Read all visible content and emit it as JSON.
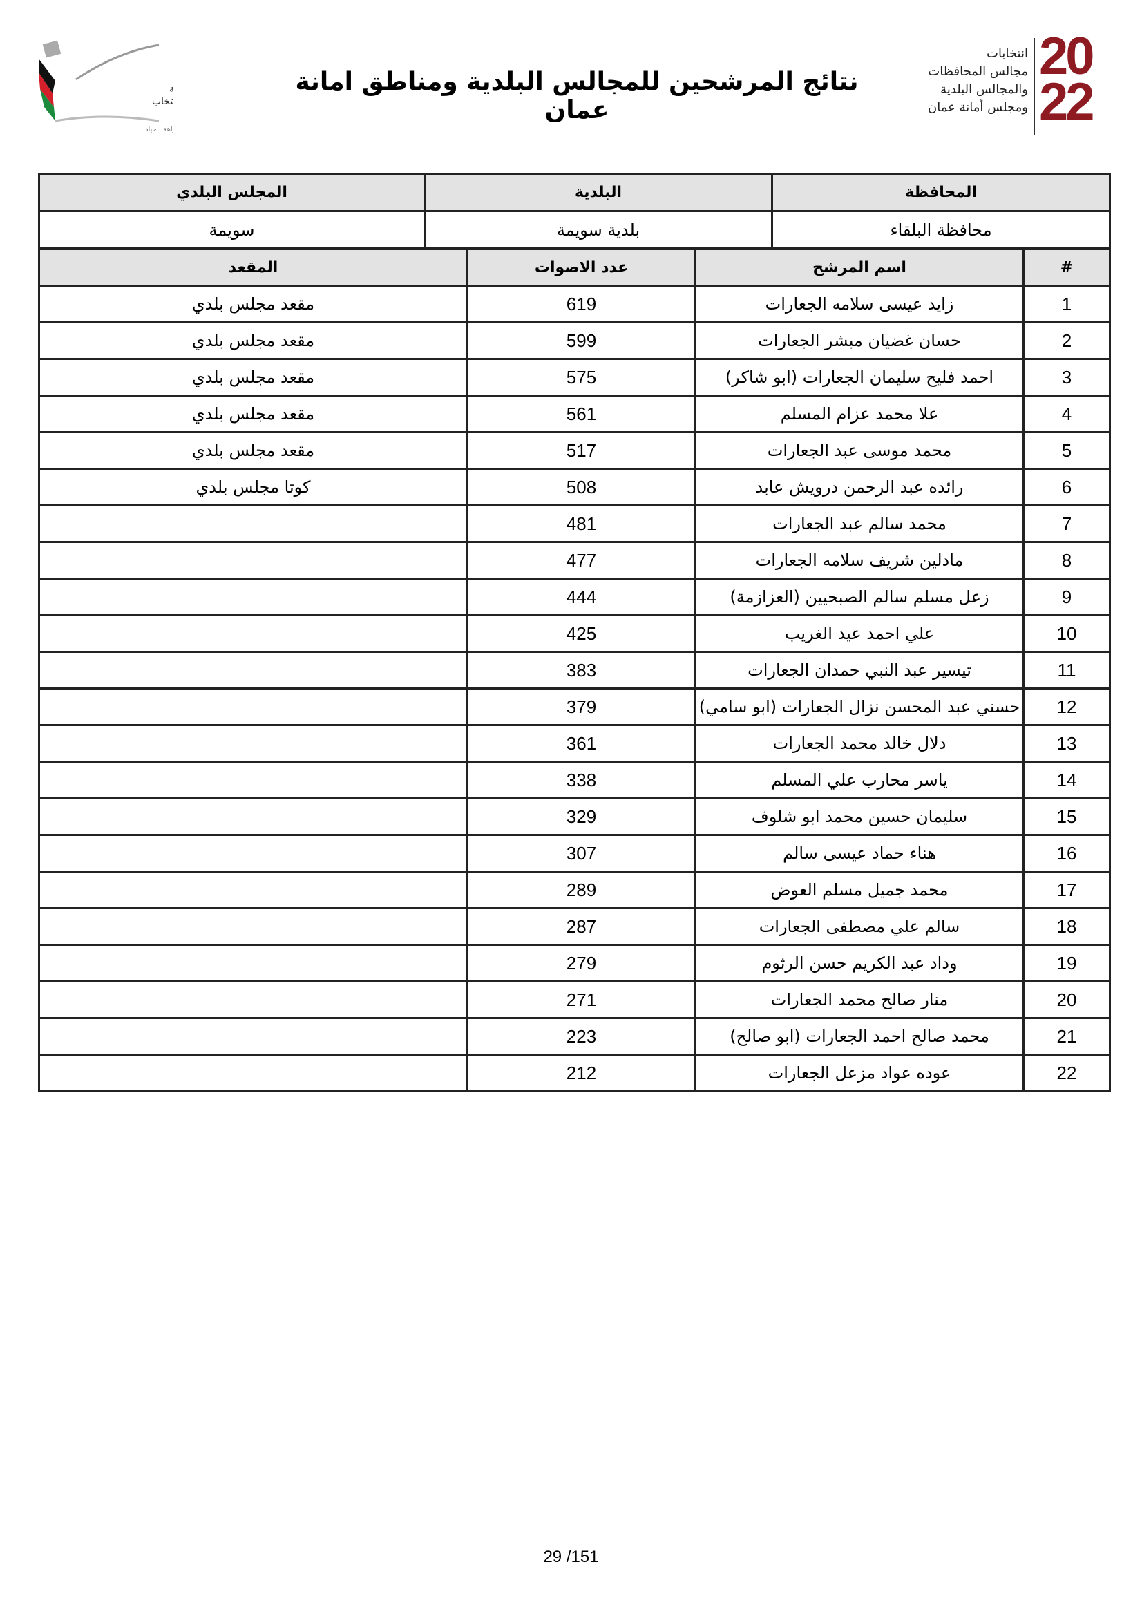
{
  "header": {
    "title": "نتائج المرشحين للمجالس البلدية ومناطق امانة عمان",
    "left_logo": {
      "name": "الهيئة المستقلة للانتخاب",
      "motto": "أمانة . نزاهة . حياد"
    },
    "right_logo": {
      "lines": [
        "انتخابات",
        "مجالس المحافظات",
        "والمجالس البلدية",
        "ومجلس أمانة عمان"
      ],
      "year": "2022",
      "color": "#8e1b22"
    }
  },
  "info": {
    "headers": [
      "المحافظة",
      "البلدية",
      "المجلس البلدي"
    ],
    "values": [
      "محافظة البلقاء",
      "بلدية سويمة",
      "سويمة"
    ]
  },
  "results": {
    "headers": [
      "#",
      "اسم المرشح",
      "عدد الاصوات",
      "المقعد"
    ],
    "rows": [
      [
        "1",
        "زايد عيسى سلامه الجعارات",
        "619",
        "مقعد مجلس بلدي"
      ],
      [
        "2",
        "حسان غضيان مبشر الجعارات",
        "599",
        "مقعد مجلس بلدي"
      ],
      [
        "3",
        "احمد فليح سليمان الجعارات (ابو شاكر)",
        "575",
        "مقعد مجلس بلدي"
      ],
      [
        "4",
        "علا محمد عزام المسلم",
        "561",
        "مقعد مجلس بلدي"
      ],
      [
        "5",
        "محمد موسى عبد الجعارات",
        "517",
        "مقعد مجلس بلدي"
      ],
      [
        "6",
        "رائده عبد الرحمن درويش عابد",
        "508",
        "كوتا مجلس بلدي"
      ],
      [
        "7",
        "محمد سالم عبد الجعارات",
        "481",
        ""
      ],
      [
        "8",
        "مادلين شريف سلامه الجعارات",
        "477",
        ""
      ],
      [
        "9",
        "زعل مسلم سالم الصبحيين (العزازمة)",
        "444",
        ""
      ],
      [
        "10",
        "علي احمد عيد الغريب",
        "425",
        ""
      ],
      [
        "11",
        "تيسير عبد النبي حمدان الجعارات",
        "383",
        ""
      ],
      [
        "12",
        "حسني عبد المحسن نزال الجعارات (ابو سامي)",
        "379",
        ""
      ],
      [
        "13",
        "دلال خالد محمد الجعارات",
        "361",
        ""
      ],
      [
        "14",
        "ياسر محارب علي المسلم",
        "338",
        ""
      ],
      [
        "15",
        "سليمان حسين محمد ابو شلوف",
        "329",
        ""
      ],
      [
        "16",
        "هناء حماد عيسى سالم",
        "307",
        ""
      ],
      [
        "17",
        "محمد جميل مسلم العوض",
        "289",
        ""
      ],
      [
        "18",
        "سالم علي مصطفى الجعارات",
        "287",
        ""
      ],
      [
        "19",
        "وداد عبد الكريم حسن الرثوم",
        "279",
        ""
      ],
      [
        "20",
        "منار صالح محمد الجعارات",
        "271",
        ""
      ],
      [
        "21",
        "محمد صالح احمد الجعارات (ابو صالح)",
        "223",
        ""
      ],
      [
        "22",
        "عوده عواد مزعل الجعارات",
        "212",
        ""
      ]
    ]
  },
  "footer": {
    "page": "29 /151"
  }
}
